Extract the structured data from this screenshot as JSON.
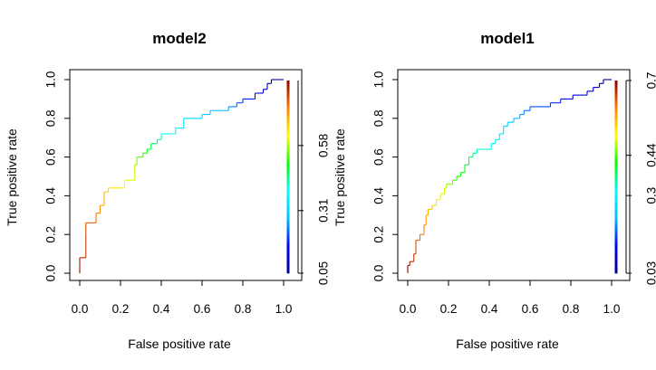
{
  "chart_data": [
    {
      "type": "line",
      "title": "model2",
      "xlabel": "False positive rate",
      "ylabel": "True positive rate",
      "xlim": [
        0,
        1
      ],
      "ylim": [
        0,
        1
      ],
      "x_ticks": [
        "0.0",
        "0.2",
        "0.4",
        "0.6",
        "0.8",
        "1.0"
      ],
      "y_ticks": [
        "0.0",
        "0.2",
        "0.4",
        "0.6",
        "0.8",
        "1.0"
      ],
      "colorbar": {
        "range": [
          0.05,
          0.85
        ],
        "tick_values": [
          0.05,
          0.31,
          0.58
        ],
        "tick_labels": [
          "0.05",
          "0.31",
          "0.58"
        ],
        "colormap": [
          "#00008b",
          "#0000ff",
          "#00bfff",
          "#00ffff",
          "#00ff00",
          "#ffff00",
          "#ff8000",
          "#8b0000"
        ]
      },
      "series": [
        {
          "points": [
            [
              0.0,
              0.0
            ],
            [
              0.0,
              0.04
            ],
            [
              0.0,
              0.08
            ],
            [
              0.03,
              0.08
            ],
            [
              0.03,
              0.2
            ],
            [
              0.03,
              0.26
            ],
            [
              0.08,
              0.26
            ],
            [
              0.08,
              0.31
            ],
            [
              0.1,
              0.31
            ],
            [
              0.1,
              0.35
            ],
            [
              0.12,
              0.35
            ],
            [
              0.12,
              0.42
            ],
            [
              0.14,
              0.42
            ],
            [
              0.14,
              0.44
            ],
            [
              0.22,
              0.44
            ],
            [
              0.22,
              0.48
            ],
            [
              0.27,
              0.48
            ],
            [
              0.27,
              0.56
            ],
            [
              0.28,
              0.56
            ],
            [
              0.28,
              0.6
            ],
            [
              0.31,
              0.6
            ],
            [
              0.31,
              0.62
            ],
            [
              0.33,
              0.62
            ],
            [
              0.33,
              0.64
            ],
            [
              0.35,
              0.64
            ],
            [
              0.35,
              0.67
            ],
            [
              0.38,
              0.67
            ],
            [
              0.38,
              0.69
            ],
            [
              0.4,
              0.69
            ],
            [
              0.4,
              0.72
            ],
            [
              0.47,
              0.72
            ],
            [
              0.47,
              0.75
            ],
            [
              0.51,
              0.75
            ],
            [
              0.51,
              0.8
            ],
            [
              0.6,
              0.8
            ],
            [
              0.6,
              0.82
            ],
            [
              0.64,
              0.82
            ],
            [
              0.64,
              0.84
            ],
            [
              0.73,
              0.84
            ],
            [
              0.73,
              0.86
            ],
            [
              0.77,
              0.86
            ],
            [
              0.77,
              0.88
            ],
            [
              0.8,
              0.88
            ],
            [
              0.8,
              0.9
            ],
            [
              0.86,
              0.9
            ],
            [
              0.86,
              0.93
            ],
            [
              0.9,
              0.93
            ],
            [
              0.9,
              0.95
            ],
            [
              0.92,
              0.95
            ],
            [
              0.92,
              0.98
            ],
            [
              0.94,
              0.98
            ],
            [
              0.94,
              1.0
            ],
            [
              1.0,
              1.0
            ]
          ]
        }
      ]
    },
    {
      "type": "line",
      "title": "model1",
      "xlabel": "False positive rate",
      "ylabel": "True positive rate",
      "xlim": [
        0,
        1
      ],
      "ylim": [
        0,
        1
      ],
      "x_ticks": [
        "0.0",
        "0.2",
        "0.4",
        "0.6",
        "0.8",
        "1.0"
      ],
      "y_ticks": [
        "0.0",
        "0.2",
        "0.4",
        "0.6",
        "0.8",
        "1.0"
      ],
      "colorbar": {
        "range": [
          0.03,
          0.7
        ],
        "tick_values": [
          0.03,
          0.3,
          0.44,
          0.7
        ],
        "tick_labels": [
          "0.03",
          "0.3",
          "0.44",
          "0.7"
        ],
        "colormap": [
          "#00008b",
          "#0000ff",
          "#00bfff",
          "#00ffff",
          "#00ff00",
          "#ffff00",
          "#ff8000",
          "#8b0000"
        ]
      },
      "series": [
        {
          "points": [
            [
              0.0,
              0.0
            ],
            [
              0.0,
              0.04
            ],
            [
              0.01,
              0.04
            ],
            [
              0.01,
              0.06
            ],
            [
              0.03,
              0.06
            ],
            [
              0.03,
              0.1
            ],
            [
              0.04,
              0.1
            ],
            [
              0.04,
              0.17
            ],
            [
              0.06,
              0.17
            ],
            [
              0.06,
              0.2
            ],
            [
              0.08,
              0.2
            ],
            [
              0.08,
              0.25
            ],
            [
              0.09,
              0.25
            ],
            [
              0.09,
              0.3
            ],
            [
              0.1,
              0.3
            ],
            [
              0.1,
              0.33
            ],
            [
              0.12,
              0.33
            ],
            [
              0.12,
              0.35
            ],
            [
              0.14,
              0.35
            ],
            [
              0.14,
              0.38
            ],
            [
              0.16,
              0.38
            ],
            [
              0.16,
              0.41
            ],
            [
              0.18,
              0.41
            ],
            [
              0.18,
              0.44
            ],
            [
              0.19,
              0.44
            ],
            [
              0.19,
              0.46
            ],
            [
              0.22,
              0.46
            ],
            [
              0.22,
              0.48
            ],
            [
              0.24,
              0.48
            ],
            [
              0.24,
              0.5
            ],
            [
              0.26,
              0.5
            ],
            [
              0.26,
              0.52
            ],
            [
              0.28,
              0.52
            ],
            [
              0.28,
              0.56
            ],
            [
              0.3,
              0.56
            ],
            [
              0.3,
              0.6
            ],
            [
              0.32,
              0.6
            ],
            [
              0.32,
              0.62
            ],
            [
              0.34,
              0.62
            ],
            [
              0.34,
              0.64
            ],
            [
              0.41,
              0.64
            ],
            [
              0.41,
              0.67
            ],
            [
              0.43,
              0.67
            ],
            [
              0.43,
              0.69
            ],
            [
              0.45,
              0.69
            ],
            [
              0.45,
              0.72
            ],
            [
              0.47,
              0.72
            ],
            [
              0.47,
              0.76
            ],
            [
              0.49,
              0.76
            ],
            [
              0.49,
              0.78
            ],
            [
              0.52,
              0.78
            ],
            [
              0.52,
              0.8
            ],
            [
              0.55,
              0.8
            ],
            [
              0.55,
              0.82
            ],
            [
              0.57,
              0.82
            ],
            [
              0.57,
              0.84
            ],
            [
              0.6,
              0.84
            ],
            [
              0.6,
              0.86
            ],
            [
              0.7,
              0.86
            ],
            [
              0.7,
              0.88
            ],
            [
              0.75,
              0.88
            ],
            [
              0.75,
              0.9
            ],
            [
              0.81,
              0.9
            ],
            [
              0.81,
              0.92
            ],
            [
              0.88,
              0.92
            ],
            [
              0.88,
              0.94
            ],
            [
              0.91,
              0.94
            ],
            [
              0.91,
              0.96
            ],
            [
              0.94,
              0.96
            ],
            [
              0.94,
              0.98
            ],
            [
              0.96,
              0.98
            ],
            [
              0.96,
              1.0
            ],
            [
              1.0,
              1.0
            ]
          ]
        }
      ]
    }
  ]
}
